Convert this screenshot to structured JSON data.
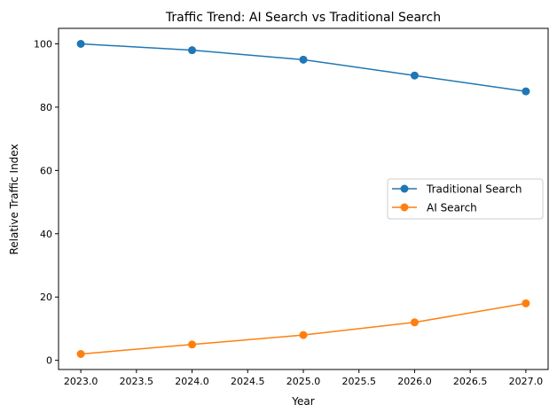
{
  "chart_data": {
    "type": "line",
    "title": "Traffic Trend: AI Search vs Traditional Search",
    "xlabel": "Year",
    "ylabel": "Relative Traffic Index",
    "x": [
      2023,
      2024,
      2025,
      2026,
      2027
    ],
    "xlim": [
      2022.8,
      2027.2
    ],
    "ylim": [
      -2.9,
      104.9
    ],
    "xticks": [
      "2023.0",
      "2023.5",
      "2024.0",
      "2024.5",
      "2025.0",
      "2025.5",
      "2026.0",
      "2026.5",
      "2027.0"
    ],
    "xtick_values": [
      2023,
      2023.5,
      2024,
      2024.5,
      2025,
      2025.5,
      2026,
      2026.5,
      2027
    ],
    "yticks": [
      "0",
      "20",
      "40",
      "60",
      "80",
      "100"
    ],
    "ytick_values": [
      0,
      20,
      40,
      60,
      80,
      100
    ],
    "grid": false,
    "legend_position": "center-right",
    "series": [
      {
        "name": "Traditional Search",
        "values": [
          100,
          98,
          95,
          90,
          85
        ],
        "color": "#1f77b4",
        "marker": "circle"
      },
      {
        "name": "AI Search",
        "values": [
          2,
          5,
          8,
          12,
          18
        ],
        "color": "#ff7f0e",
        "marker": "circle"
      }
    ]
  }
}
